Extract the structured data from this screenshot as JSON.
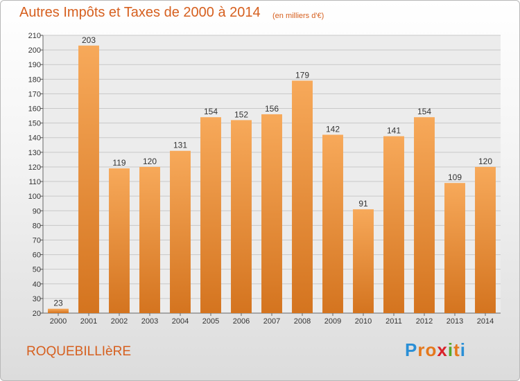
{
  "title": "Autres Impôts et Taxes de 2000 à 2014",
  "subtitle": "(en milliers d'€)",
  "commune": "ROQUEBILLIèRE",
  "logo": {
    "letters": [
      "P",
      "r",
      "o",
      "x",
      "i",
      "t",
      "i"
    ],
    "colors": [
      "#2a8fd6",
      "#e5781c",
      "#e5781c",
      "#d9222a",
      "#58a82a",
      "#e5781c",
      "#2a8fd6"
    ]
  },
  "colors": {
    "bar_top": "#f7a95a",
    "bar_bottom": "#d4741f",
    "text": "#d65f1e"
  },
  "chart_data": {
    "type": "bar",
    "categories": [
      "2000",
      "2001",
      "2002",
      "2003",
      "2004",
      "2005",
      "2006",
      "2007",
      "2008",
      "2009",
      "2010",
      "2011",
      "2012",
      "2013",
      "2014"
    ],
    "values": [
      23,
      203,
      119,
      120,
      131,
      154,
      152,
      156,
      179,
      142,
      91,
      141,
      154,
      109,
      120
    ],
    "ylim": [
      20,
      210
    ],
    "yticks": [
      20,
      30,
      40,
      50,
      60,
      70,
      80,
      90,
      100,
      110,
      120,
      130,
      140,
      150,
      160,
      170,
      180,
      190,
      200,
      210
    ],
    "grid": true
  }
}
